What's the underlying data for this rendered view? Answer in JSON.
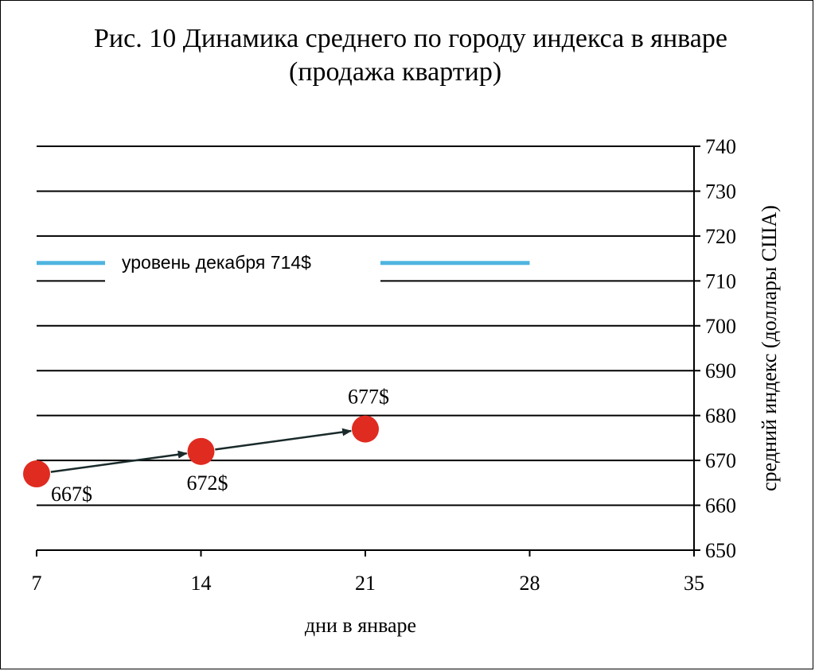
{
  "title_line1": "Рис. 10 Динамика среднего по городу индекса в январе",
  "title_line2": "(продажа квартир)",
  "chart_data": {
    "type": "line",
    "xlabel": "дни в январе",
    "ylabel": "средний индекс (доллары США)",
    "xlim": [
      7,
      35
    ],
    "ylim": [
      650,
      740
    ],
    "x_ticks": [
      7,
      14,
      21,
      28,
      35
    ],
    "y_ticks": [
      650,
      660,
      670,
      680,
      690,
      700,
      710,
      720,
      730,
      740
    ],
    "grid": true,
    "y_axis_side": "right",
    "series": [
      {
        "x": [
          7,
          14,
          21
        ],
        "y": [
          667,
          672,
          677
        ],
        "labels": [
          "667$",
          "672$",
          "677$"
        ],
        "color": "#e02b20"
      }
    ],
    "reference_line": {
      "label": "уровень декабря  714$",
      "y": 714,
      "x_range": [
        7,
        28
      ],
      "color": "#4fb3e0"
    }
  }
}
